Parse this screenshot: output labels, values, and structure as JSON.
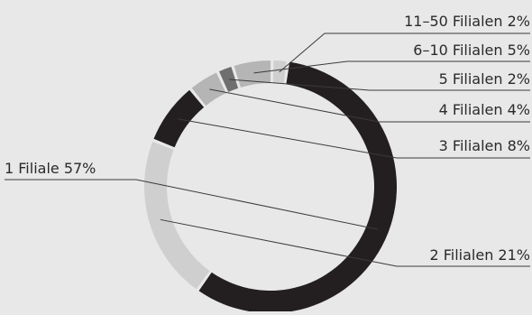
{
  "chart_data": {
    "type": "pie",
    "style": "donut",
    "slices": [
      {
        "label": "1 Filiale 57%",
        "category": "1 Filiale",
        "value": 57,
        "color": "#231f20"
      },
      {
        "label": "2 Filialen 21%",
        "category": "2 Filialen",
        "value": 21,
        "color": "#cfcfcf"
      },
      {
        "label": "3 Filialen 8%",
        "category": "3 Filialen",
        "value": 8,
        "color": "#231f20"
      },
      {
        "label": "4 Filialen 4%",
        "category": "4 Filialen",
        "value": 4,
        "color": "#b5b5b5"
      },
      {
        "label": "5 Filialen 2%",
        "category": "5 Filialen",
        "value": 2,
        "color": "#6f6f6f"
      },
      {
        "label": "6–10 Filialen 5%",
        "category": "6–10 Filialen",
        "value": 5,
        "color": "#b5b5b5"
      },
      {
        "label": "11–50 Filialen 2%",
        "category": "11–50 Filialen",
        "value": 2,
        "color": "#cfcfcf"
      }
    ]
  }
}
